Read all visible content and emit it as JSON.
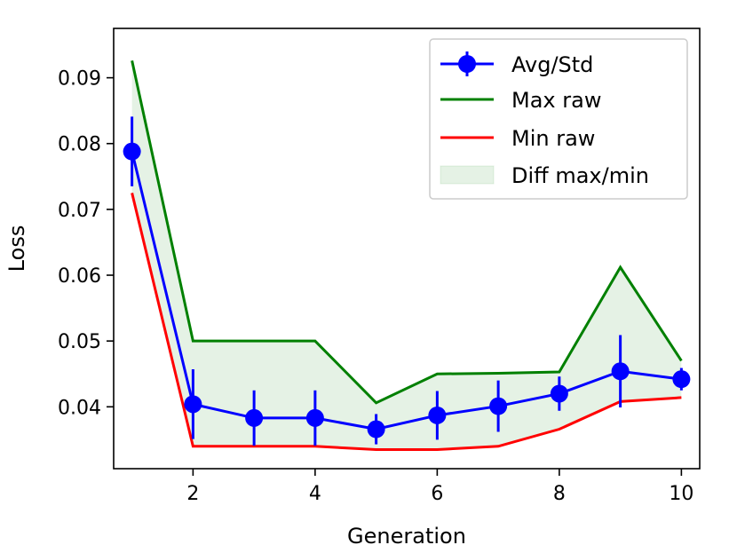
{
  "chart_data": {
    "type": "line",
    "xlabel": "Generation",
    "ylabel": "Loss",
    "xlim": [
      0.7,
      10.3
    ],
    "ylim": [
      0.0306,
      0.0975
    ],
    "x_ticks": [
      2,
      4,
      6,
      8,
      10
    ],
    "y_ticks": [
      0.04,
      0.05,
      0.06,
      0.07,
      0.08,
      0.09
    ],
    "x_tick_labels": [
      "2",
      "4",
      "6",
      "8",
      "10"
    ],
    "y_tick_labels": [
      "0.04",
      "0.05",
      "0.06",
      "0.07",
      "0.08",
      "0.09"
    ],
    "grid": false,
    "legend_position": "top-right",
    "x": [
      1,
      2,
      3,
      4,
      5,
      6,
      7,
      8,
      9,
      10
    ],
    "series": [
      {
        "name": "Avg/Std",
        "color": "#0000ff",
        "kind": "errorbar",
        "values": [
          0.0788,
          0.0404,
          0.0383,
          0.0383,
          0.0366,
          0.0387,
          0.0401,
          0.042,
          0.0454,
          0.0442
        ],
        "errors": [
          0.0053,
          0.0053,
          0.0042,
          0.0042,
          0.0023,
          0.0037,
          0.0039,
          0.0026,
          0.0055,
          0.0017
        ]
      },
      {
        "name": "Max raw",
        "color": "#008000",
        "kind": "line",
        "values": [
          0.0926,
          0.05,
          0.05,
          0.05,
          0.0406,
          0.045,
          0.0451,
          0.0453,
          0.0612,
          0.047
        ]
      },
      {
        "name": "Min raw",
        "color": "#ff0000",
        "kind": "line",
        "values": [
          0.0725,
          0.034,
          0.034,
          0.034,
          0.0335,
          0.0335,
          0.034,
          0.0366,
          0.0408,
          0.0414
        ]
      },
      {
        "name": "Diff max/min",
        "color": "#008000",
        "kind": "fill_between"
      }
    ]
  }
}
